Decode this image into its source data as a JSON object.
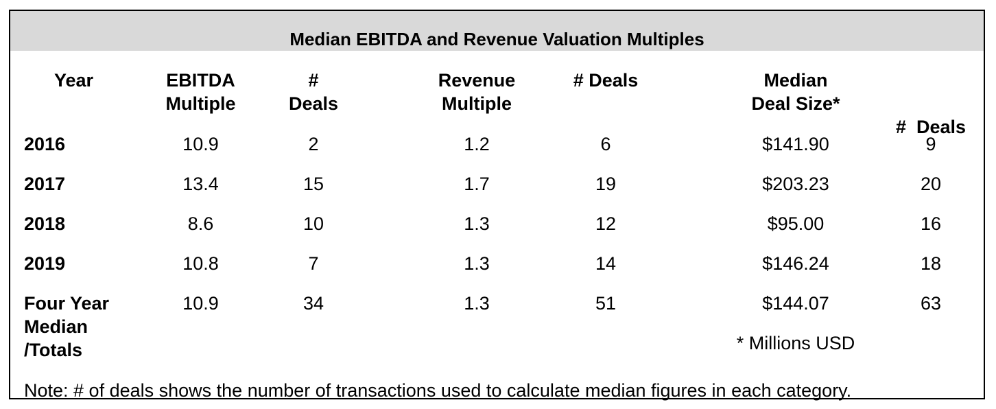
{
  "title": "Median EBITDA and Revenue Valuation Multiples",
  "columns": [
    [
      "Year"
    ],
    [
      "EBITDA",
      "Multiple"
    ],
    [
      "#",
      "Deals"
    ],
    [
      "Revenue",
      "Multiple"
    ],
    [
      "# Deals"
    ],
    [
      "Median",
      "Deal Size*"
    ],
    [
      "#  Deals"
    ]
  ],
  "rows": [
    {
      "label": [
        "2016"
      ],
      "values": [
        "10.9",
        "2",
        "1.2",
        "6",
        "$141.90",
        "9"
      ]
    },
    {
      "label": [
        "2017"
      ],
      "values": [
        "13.4",
        "15",
        "1.7",
        "19",
        "$203.23",
        "20"
      ]
    },
    {
      "label": [
        "2018"
      ],
      "values": [
        "8.6",
        "10",
        "1.3",
        "12",
        "$95.00",
        "16"
      ]
    },
    {
      "label": [
        "2019"
      ],
      "values": [
        "10.8",
        "7",
        "1.3",
        "14",
        "$146.24",
        "18"
      ]
    },
    {
      "label": [
        "Four Year",
        "Median",
        "/Totals"
      ],
      "values": [
        "10.9",
        "34",
        "1.3",
        "51",
        "$144.07",
        "63"
      ]
    }
  ],
  "footnote": "* Millions USD",
  "note": "Note: # of deals shows the number of transactions used to calculate median figures in each category."
}
